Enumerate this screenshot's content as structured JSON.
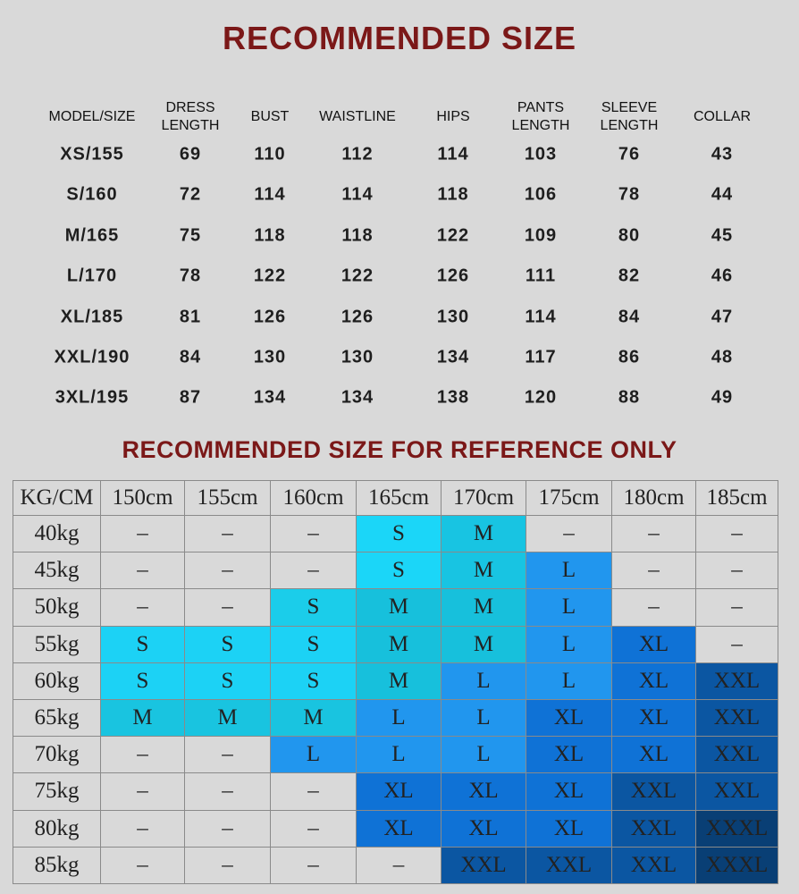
{
  "title": "RECOMMENDED SIZE",
  "size_table": {
    "header": [
      "MODEL/SIZE",
      "DRESS LENGTH",
      "BUST",
      "WAISTLINE",
      "HIPS",
      "PANTS LENGTH",
      "SLEEVE LENGTH",
      "COLLAR"
    ],
    "rows": [
      [
        "XS/155",
        "69",
        "110",
        "112",
        "114",
        "103",
        "76",
        "43"
      ],
      [
        "S/160",
        "72",
        "114",
        "114",
        "118",
        "106",
        "78",
        "44"
      ],
      [
        "M/165",
        "75",
        "118",
        "118",
        "122",
        "109",
        "80",
        "45"
      ],
      [
        "L/170",
        "78",
        "122",
        "122",
        "126",
        "111",
        "82",
        "46"
      ],
      [
        "XL/185",
        "81",
        "126",
        "126",
        "130",
        "114",
        "84",
        "47"
      ],
      [
        "XXL/190",
        "84",
        "130",
        "130",
        "134",
        "117",
        "86",
        "48"
      ],
      [
        "3XL/195",
        "87",
        "134",
        "134",
        "138",
        "120",
        "88",
        "49"
      ]
    ]
  },
  "subtitle": "RECOMMENDED SIZE FOR REFERENCE ONLY",
  "reference_table": {
    "header": [
      "KG/CM",
      "150cm",
      "155cm",
      "160cm",
      "165cm",
      "170cm",
      "175cm",
      "180cm",
      "185cm"
    ],
    "rows": [
      [
        "40kg",
        "–",
        "–",
        "–",
        {
          "text": "S",
          "color": "#1bd6f8"
        },
        {
          "text": "M",
          "color": "#18c4e2"
        },
        "–",
        "–",
        "–"
      ],
      [
        "45kg",
        "–",
        "–",
        "–",
        {
          "text": "S",
          "color": "#1bd6f8"
        },
        {
          "text": "M",
          "color": "#18c4e2"
        },
        {
          "text": "L",
          "color": "#2196ee"
        },
        "–",
        "–"
      ],
      [
        "50kg",
        "–",
        "–",
        {
          "text": "S",
          "color": "#1bcdea"
        },
        {
          "text": "M",
          "color": "#17c0dc"
        },
        {
          "text": "M",
          "color": "#17c0dc"
        },
        {
          "text": "L",
          "color": "#2196ee"
        },
        "–",
        "–"
      ],
      [
        "55kg",
        {
          "text": "S",
          "color": "#1cd2f5"
        },
        {
          "text": "S",
          "color": "#1cd2f5"
        },
        {
          "text": "S",
          "color": "#1cd2f5"
        },
        {
          "text": "M",
          "color": "#17c0dc"
        },
        {
          "text": "M",
          "color": "#17c0dc"
        },
        {
          "text": "L",
          "color": "#2196ee"
        },
        {
          "text": "XL",
          "color": "#0f72d6"
        },
        "–"
      ],
      [
        "60kg",
        {
          "text": "S",
          "color": "#1cd2f5"
        },
        {
          "text": "S",
          "color": "#1cd2f5"
        },
        {
          "text": "S",
          "color": "#1cd2f5"
        },
        {
          "text": "M",
          "color": "#17c0dc"
        },
        {
          "text": "L",
          "color": "#2196ee"
        },
        {
          "text": "L",
          "color": "#2196ee"
        },
        {
          "text": "XL",
          "color": "#0f72d6"
        },
        {
          "text": "XXL",
          "color": "#0b56a2"
        }
      ],
      [
        "65kg",
        {
          "text": "M",
          "color": "#19c4e0"
        },
        {
          "text": "M",
          "color": "#19c4e0"
        },
        {
          "text": "M",
          "color": "#19c4e0"
        },
        {
          "text": "L",
          "color": "#2196ee"
        },
        {
          "text": "L",
          "color": "#2196ee"
        },
        {
          "text": "XL",
          "color": "#0f72d6"
        },
        {
          "text": "XL",
          "color": "#0f72d6"
        },
        {
          "text": "XXL",
          "color": "#0b56a2"
        }
      ],
      [
        "70kg",
        "–",
        "–",
        {
          "text": "L",
          "color": "#2196ee"
        },
        {
          "text": "L",
          "color": "#2196ee"
        },
        {
          "text": "L",
          "color": "#2196ee"
        },
        {
          "text": "XL",
          "color": "#0f72d6"
        },
        {
          "text": "XL",
          "color": "#0f72d6"
        },
        {
          "text": "XXL",
          "color": "#0b56a2"
        }
      ],
      [
        "75kg",
        "–",
        "–",
        "–",
        {
          "text": "XL",
          "color": "#0f72d6"
        },
        {
          "text": "XL",
          "color": "#0f72d6"
        },
        {
          "text": "XL",
          "color": "#0f72d6"
        },
        {
          "text": "XXL",
          "color": "#0b56a2"
        },
        {
          "text": "XXL",
          "color": "#0b56a2"
        }
      ],
      [
        "80kg",
        "–",
        "–",
        "–",
        {
          "text": "XL",
          "color": "#0f72d6"
        },
        {
          "text": "XL",
          "color": "#0f72d6"
        },
        {
          "text": "XL",
          "color": "#0f72d6"
        },
        {
          "text": "XXL",
          "color": "#0b56a2"
        },
        {
          "text": "XXXL",
          "color": "#093f75"
        }
      ],
      [
        "85kg",
        "–",
        "–",
        "–",
        "–",
        {
          "text": "XXL",
          "color": "#0b56a2"
        },
        {
          "text": "XXL",
          "color": "#0b56a2"
        },
        {
          "text": "XXL",
          "color": "#0b56a2"
        },
        {
          "text": "XXXL",
          "color": "#093f75"
        }
      ]
    ]
  }
}
